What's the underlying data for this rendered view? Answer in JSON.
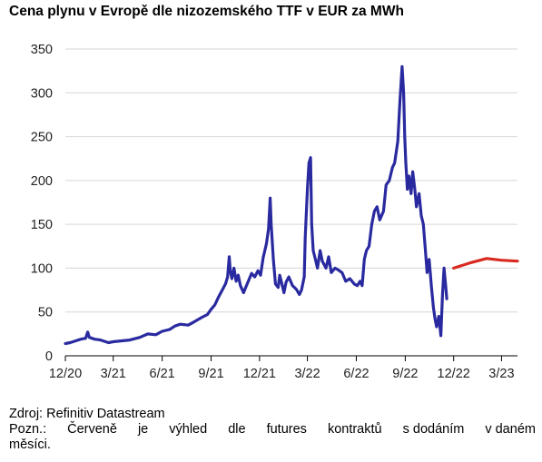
{
  "title": "Cena plynu v Evropě dle nizozemského TTF v EUR za MWh",
  "source": "Zdroj: Refinitiv Datastream",
  "note_line1_words": [
    "Pozn.:",
    "Červeně",
    "je",
    "výhled",
    "dle",
    "futures",
    "kontraktů",
    "s dodáním",
    "v daném"
  ],
  "note_line2": "měsíci.",
  "colors": {
    "history": "#2a2aa0",
    "forecast": "#d92a20",
    "axis": "#000000"
  },
  "chart_data": {
    "type": "line",
    "title": "Cena plynu v Evropě dle nizozemského TTF v EUR za MWh",
    "xlabel": "",
    "ylabel": "",
    "ylim": [
      0,
      350
    ],
    "y_ticks": [
      0,
      50,
      100,
      150,
      200,
      250,
      300,
      350
    ],
    "x_range": [
      "2020-12-01",
      "2023-03-31"
    ],
    "x_ticks": [
      {
        "date": "2020-12-01",
        "label": "12/20"
      },
      {
        "date": "2021-03-01",
        "label": "3/21"
      },
      {
        "date": "2021-06-01",
        "label": "6/21"
      },
      {
        "date": "2021-09-01",
        "label": "9/21"
      },
      {
        "date": "2021-12-01",
        "label": "12/21"
      },
      {
        "date": "2022-03-01",
        "label": "3/22"
      },
      {
        "date": "2022-06-01",
        "label": "6/22"
      },
      {
        "date": "2022-09-01",
        "label": "9/22"
      },
      {
        "date": "2022-12-01",
        "label": "12/22"
      },
      {
        "date": "2023-03-01",
        "label": "3/23"
      }
    ],
    "grid": "horizontal",
    "series": [
      {
        "color": "#2a2aa0",
        "points": [
          [
            "2020-12-01",
            14
          ],
          [
            "2020-12-10",
            15
          ],
          [
            "2020-12-20",
            17
          ],
          [
            "2020-12-30",
            19
          ],
          [
            "2021-01-08",
            20
          ],
          [
            "2021-01-12",
            27
          ],
          [
            "2021-01-15",
            21
          ],
          [
            "2021-01-25",
            19
          ],
          [
            "2021-02-05",
            18
          ],
          [
            "2021-02-20",
            15
          ],
          [
            "2021-03-01",
            16
          ],
          [
            "2021-03-15",
            17
          ],
          [
            "2021-04-01",
            18
          ],
          [
            "2021-04-20",
            21
          ],
          [
            "2021-05-05",
            25
          ],
          [
            "2021-05-20",
            24
          ],
          [
            "2021-06-01",
            28
          ],
          [
            "2021-06-15",
            30
          ],
          [
            "2021-06-25",
            34
          ],
          [
            "2021-07-05",
            36
          ],
          [
            "2021-07-20",
            35
          ],
          [
            "2021-08-01",
            39
          ],
          [
            "2021-08-15",
            44
          ],
          [
            "2021-08-25",
            47
          ],
          [
            "2021-09-01",
            53
          ],
          [
            "2021-09-08",
            58
          ],
          [
            "2021-09-15",
            67
          ],
          [
            "2021-09-22",
            75
          ],
          [
            "2021-09-28",
            82
          ],
          [
            "2021-10-02",
            90
          ],
          [
            "2021-10-05",
            113
          ],
          [
            "2021-10-07",
            98
          ],
          [
            "2021-10-10",
            88
          ],
          [
            "2021-10-14",
            100
          ],
          [
            "2021-10-18",
            85
          ],
          [
            "2021-10-22",
            92
          ],
          [
            "2021-10-26",
            80
          ],
          [
            "2021-11-01",
            72
          ],
          [
            "2021-11-05",
            78
          ],
          [
            "2021-11-10",
            85
          ],
          [
            "2021-11-16",
            94
          ],
          [
            "2021-11-22",
            90
          ],
          [
            "2021-11-28",
            97
          ],
          [
            "2021-12-03",
            92
          ],
          [
            "2021-12-08",
            112
          ],
          [
            "2021-12-14",
            128
          ],
          [
            "2021-12-18",
            145
          ],
          [
            "2021-12-21",
            180
          ],
          [
            "2021-12-23",
            150
          ],
          [
            "2021-12-27",
            110
          ],
          [
            "2021-12-31",
            82
          ],
          [
            "2022-01-05",
            78
          ],
          [
            "2022-01-08",
            92
          ],
          [
            "2022-01-12",
            82
          ],
          [
            "2022-01-16",
            72
          ],
          [
            "2022-01-20",
            84
          ],
          [
            "2022-01-25",
            90
          ],
          [
            "2022-02-01",
            80
          ],
          [
            "2022-02-08",
            76
          ],
          [
            "2022-02-14",
            70
          ],
          [
            "2022-02-18",
            75
          ],
          [
            "2022-02-23",
            90
          ],
          [
            "2022-02-25",
            135
          ],
          [
            "2022-03-01",
            190
          ],
          [
            "2022-03-04",
            220
          ],
          [
            "2022-03-07",
            226
          ],
          [
            "2022-03-09",
            150
          ],
          [
            "2022-03-12",
            120
          ],
          [
            "2022-03-16",
            110
          ],
          [
            "2022-03-20",
            100
          ],
          [
            "2022-03-25",
            120
          ],
          [
            "2022-03-29",
            108
          ],
          [
            "2022-04-05",
            100
          ],
          [
            "2022-04-10",
            113
          ],
          [
            "2022-04-15",
            95
          ],
          [
            "2022-04-22",
            100
          ],
          [
            "2022-04-28",
            98
          ],
          [
            "2022-05-05",
            95
          ],
          [
            "2022-05-12",
            85
          ],
          [
            "2022-05-20",
            88
          ],
          [
            "2022-05-28",
            82
          ],
          [
            "2022-06-03",
            80
          ],
          [
            "2022-06-08",
            85
          ],
          [
            "2022-06-12",
            80
          ],
          [
            "2022-06-16",
            110
          ],
          [
            "2022-06-20",
            120
          ],
          [
            "2022-06-25",
            125
          ],
          [
            "2022-06-30",
            150
          ],
          [
            "2022-07-05",
            165
          ],
          [
            "2022-07-10",
            170
          ],
          [
            "2022-07-15",
            155
          ],
          [
            "2022-07-22",
            165
          ],
          [
            "2022-07-27",
            195
          ],
          [
            "2022-08-02",
            200
          ],
          [
            "2022-08-08",
            215
          ],
          [
            "2022-08-12",
            220
          ],
          [
            "2022-08-18",
            245
          ],
          [
            "2022-08-22",
            290
          ],
          [
            "2022-08-26",
            330
          ],
          [
            "2022-08-29",
            300
          ],
          [
            "2022-08-31",
            250
          ],
          [
            "2022-09-02",
            220
          ],
          [
            "2022-09-05",
            190
          ],
          [
            "2022-09-08",
            205
          ],
          [
            "2022-09-12",
            185
          ],
          [
            "2022-09-15",
            210
          ],
          [
            "2022-09-19",
            190
          ],
          [
            "2022-09-22",
            170
          ],
          [
            "2022-09-27",
            185
          ],
          [
            "2022-10-01",
            160
          ],
          [
            "2022-10-05",
            150
          ],
          [
            "2022-10-09",
            120
          ],
          [
            "2022-10-12",
            95
          ],
          [
            "2022-10-16",
            110
          ],
          [
            "2022-10-20",
            80
          ],
          [
            "2022-10-24",
            55
          ],
          [
            "2022-10-27",
            42
          ],
          [
            "2022-10-30",
            33
          ],
          [
            "2022-11-03",
            45
          ],
          [
            "2022-11-07",
            23
          ],
          [
            "2022-11-10",
            70
          ],
          [
            "2022-11-13",
            100
          ],
          [
            "2022-11-16",
            80
          ],
          [
            "2022-11-18",
            65
          ]
        ]
      },
      {
        "color": "#d92a20",
        "points": [
          [
            "2022-12-01",
            100
          ],
          [
            "2023-01-01",
            106
          ],
          [
            "2023-02-01",
            111
          ],
          [
            "2023-03-01",
            109
          ],
          [
            "2023-03-31",
            108
          ]
        ]
      }
    ]
  }
}
